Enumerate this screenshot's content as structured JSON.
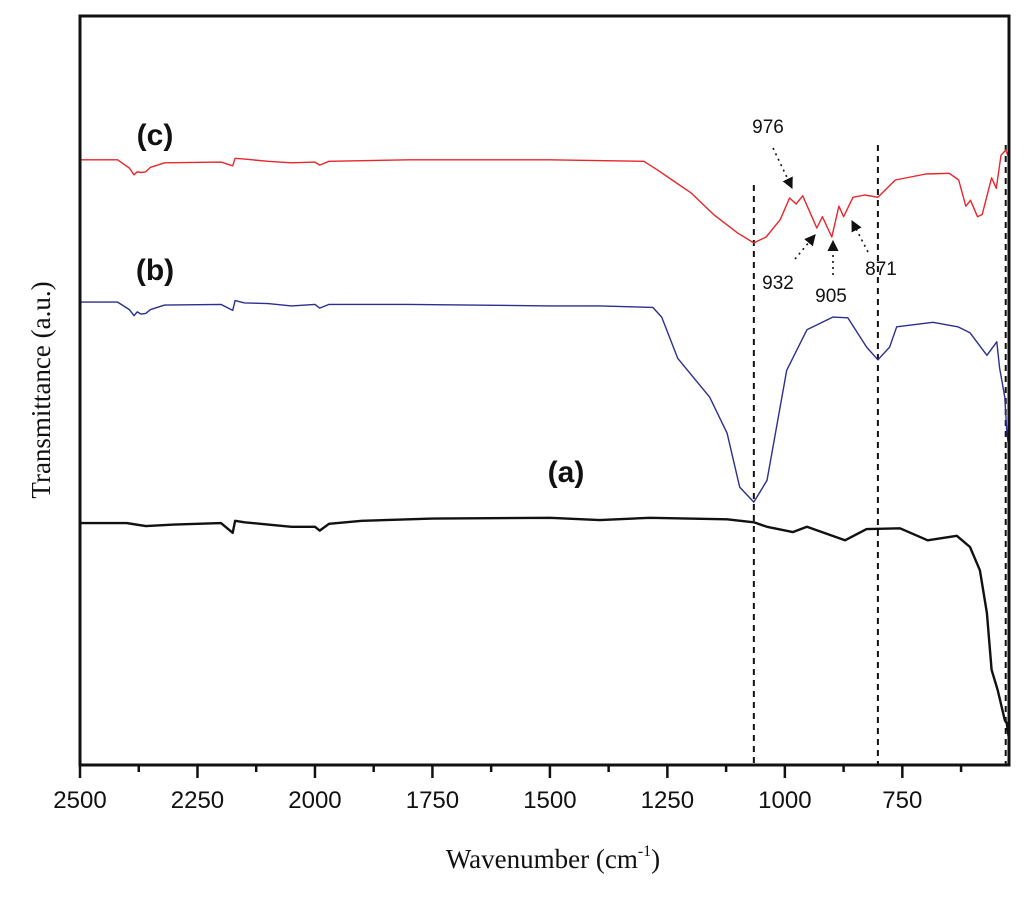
{
  "chart_data": {
    "type": "line",
    "title": "",
    "xlabel": "Wavenumber (cm",
    "xlabel_sup": "-1",
    "xlabel_close": ")",
    "ylabel": "Transmittance (a.u.)",
    "xlim": [
      2500,
      523
    ],
    "ylim": [
      0,
      100
    ],
    "x_reversed": true,
    "grid": false,
    "x_ticks": [
      2500,
      2250,
      2000,
      1750,
      1500,
      1250,
      1000,
      750
    ],
    "x_tick_labels": [
      "2500",
      "2250",
      "2000",
      "1750",
      "1500",
      "1250",
      "1000",
      "750"
    ],
    "x_minor_ticks": [
      2375,
      2125,
      1875,
      1625,
      1375,
      1125,
      875,
      625
    ],
    "reference_lines": [
      1066,
      802,
      530
    ],
    "series": [
      {
        "name": "(c)",
        "color": "#e8262b",
        "x": [
          2500,
          2420,
          2395,
          2385,
          2378,
          2370,
          2360,
          2350,
          2320,
          2200,
          2175,
          2170,
          2150,
          2100,
          2050,
          2000,
          1990,
          1970,
          1800,
          1500,
          1300,
          1270,
          1240,
          1200,
          1150,
          1100,
          1066,
          1040,
          1010,
          990,
          976,
          962,
          932,
          920,
          900,
          885,
          875,
          855,
          830,
          802,
          765,
          700,
          650,
          630,
          615,
          605,
          590,
          580,
          560,
          550,
          540,
          530,
          523
        ],
        "y": [
          80.8,
          80.8,
          79.7,
          78.8,
          79.2,
          79.1,
          79.2,
          79.8,
          80.4,
          80.5,
          80.0,
          81.0,
          80.9,
          80.6,
          80.4,
          80.5,
          80.1,
          80.6,
          80.8,
          80.8,
          80.6,
          79.4,
          78.1,
          76.4,
          73.4,
          71.0,
          69.7,
          70.5,
          72.8,
          75.7,
          74.9,
          76.0,
          71.7,
          73.2,
          70.5,
          74.6,
          73.2,
          75.8,
          76.1,
          75.8,
          78.1,
          78.9,
          79.0,
          78.1,
          74.6,
          75.4,
          73.2,
          73.5,
          78.4,
          77.0,
          81.4,
          82.1,
          81.0
        ]
      },
      {
        "name": "(b)",
        "color": "#2b2f8f",
        "x": [
          2500,
          2420,
          2395,
          2385,
          2378,
          2370,
          2360,
          2350,
          2320,
          2200,
          2175,
          2170,
          2150,
          2100,
          2050,
          2000,
          1990,
          1970,
          1800,
          1500,
          1394,
          1281,
          1262,
          1228,
          1160,
          1123,
          1096,
          1066,
          1038,
          996,
          953,
          898,
          866,
          826,
          802,
          777,
          762,
          685,
          632,
          606,
          570,
          549,
          543,
          532,
          528,
          523
        ],
        "y": [
          61.8,
          61.8,
          60.8,
          60.0,
          60.5,
          60.2,
          60.3,
          60.8,
          61.4,
          61.5,
          60.7,
          62.0,
          61.7,
          61.6,
          61.3,
          61.5,
          61.0,
          61.5,
          61.5,
          61.3,
          61.3,
          61.1,
          59.8,
          54.3,
          49.1,
          44.3,
          37.1,
          35.1,
          38.0,
          52.7,
          58.1,
          59.8,
          59.7,
          55.8,
          54.1,
          55.8,
          58.5,
          59.1,
          58.5,
          57.7,
          54.7,
          56.5,
          53.0,
          49.1,
          44.7,
          42.0
        ]
      },
      {
        "name": "(a)",
        "color": "#111111",
        "x": [
          2500,
          2400,
          2360,
          2300,
          2200,
          2175,
          2170,
          2150,
          2100,
          2050,
          2000,
          1990,
          1970,
          1900,
          1750,
          1500,
          1394,
          1287,
          1123,
          1066,
          1038,
          983,
          953,
          872,
          826,
          755,
          696,
          634,
          606,
          585,
          570,
          560,
          547,
          532,
          528,
          523
        ],
        "y": [
          32.3,
          32.3,
          31.9,
          32.1,
          32.3,
          31.0,
          32.6,
          32.4,
          32.1,
          31.8,
          31.8,
          31.3,
          32.2,
          32.6,
          32.9,
          33.0,
          32.7,
          33.0,
          32.8,
          32.4,
          31.8,
          31.1,
          31.8,
          30.0,
          31.5,
          31.6,
          30.0,
          30.6,
          29.1,
          26.0,
          20.3,
          12.7,
          10.0,
          6.0,
          5.6,
          3.5
        ]
      }
    ],
    "annotations": [
      {
        "text": "976",
        "x": 976
      },
      {
        "text": "932",
        "x": 932
      },
      {
        "text": "905",
        "x": 905
      },
      {
        "text": "871",
        "x": 871
      }
    ]
  }
}
